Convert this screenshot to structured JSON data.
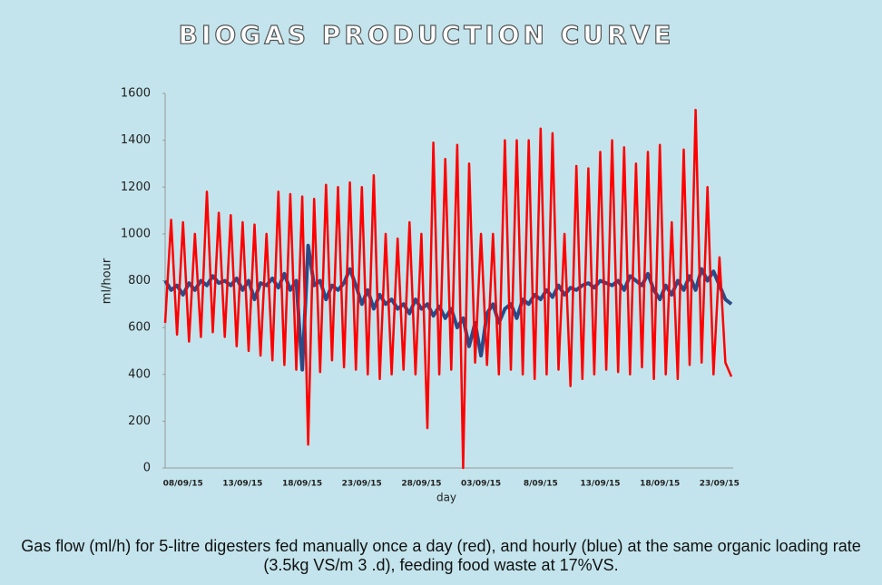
{
  "chart_data": {
    "type": "line",
    "title": "BIOGAS PRODUCTION CURVE",
    "y_label": "ml/hour",
    "x_label": "day",
    "caption": "Gas flow (ml/h) for 5-litre digesters fed manually  once a day (red), and hourly (blue) at the same organic loading rate (3.5kg VS/m 3 .d), feeding food waste at 17%VS.",
    "categories": [
      null,
      null,
      null,
      "08/09/15",
      null,
      null,
      null,
      null,
      null,
      null,
      null,
      null,
      null,
      "13/09/15",
      null,
      null,
      null,
      null,
      null,
      null,
      null,
      null,
      null,
      "18/09/15",
      null,
      null,
      null,
      null,
      null,
      null,
      null,
      null,
      null,
      "23/09/15",
      null,
      null,
      null,
      null,
      null,
      null,
      null,
      null,
      null,
      "28/09/15",
      null,
      null,
      null,
      null,
      null,
      null,
      null,
      null,
      null,
      "03/09/15",
      null,
      null,
      null,
      null,
      null,
      null,
      null,
      null,
      null,
      "8/09/15",
      null,
      null,
      null,
      null,
      null,
      null,
      null,
      null,
      null,
      "13/09/15",
      null,
      null,
      null,
      null,
      null,
      null,
      null,
      null,
      null,
      "18/09/15",
      null,
      null,
      null,
      null,
      null,
      null,
      null,
      null,
      null,
      "23/09/15",
      null,
      null
    ],
    "series": [
      {
        "color": "#2c4a86",
        "values": [
          800,
          760,
          780,
          740,
          790,
          760,
          800,
          780,
          820,
          790,
          800,
          780,
          810,
          760,
          800,
          720,
          790,
          780,
          810,
          770,
          830,
          760,
          800,
          420,
          950,
          780,
          800,
          720,
          780,
          760,
          790,
          850,
          780,
          700,
          760,
          680,
          740,
          700,
          720,
          680,
          700,
          660,
          720,
          680,
          700,
          650,
          690,
          640,
          680,
          600,
          640,
          520,
          620,
          480,
          660,
          700,
          620,
          680,
          700,
          640,
          720,
          700,
          740,
          720,
          760,
          730,
          780,
          740,
          770,
          760,
          780,
          790,
          770,
          800,
          790,
          780,
          800,
          760,
          820,
          800,
          780,
          830,
          760,
          720,
          780,
          740,
          800,
          760,
          820,
          760,
          850,
          800,
          840,
          780,
          720,
          700
        ]
      },
      {
        "color": "#ff0000",
        "values": [
          620,
          1060,
          570,
          1050,
          540,
          1000,
          560,
          1180,
          580,
          1090,
          560,
          1080,
          520,
          1050,
          500,
          1040,
          480,
          1000,
          460,
          1180,
          440,
          1170,
          420,
          1160,
          100,
          1150,
          410,
          1210,
          460,
          1200,
          430,
          1220,
          420,
          1200,
          400,
          1250,
          380,
          1000,
          400,
          980,
          420,
          1050,
          400,
          1000,
          170,
          1390,
          400,
          1320,
          420,
          1380,
          0,
          1300,
          450,
          1000,
          440,
          1000,
          400,
          1400,
          420,
          1400,
          400,
          1400,
          380,
          1450,
          400,
          1430,
          420,
          1000,
          350,
          1290,
          380,
          1280,
          400,
          1350,
          420,
          1400,
          410,
          1370,
          400,
          1300,
          430,
          1350,
          380,
          1380,
          400,
          1050,
          380,
          1360,
          440,
          1530,
          450,
          1200,
          400,
          900,
          450,
          390
        ]
      }
    ],
    "ylim": [
      0,
      1600
    ],
    "yticks": [
      0,
      200,
      400,
      600,
      800,
      1000,
      1200,
      1400,
      1600
    ],
    "grid": false
  }
}
